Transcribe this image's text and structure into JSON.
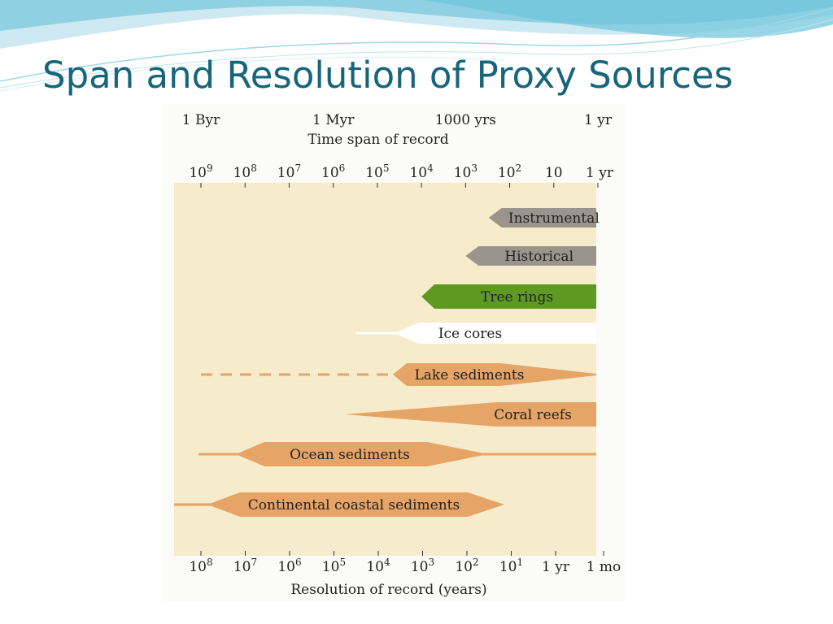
{
  "slide": {
    "title": "Span and Resolution of Proxy Sources"
  },
  "chart_data": {
    "type": "range-bar",
    "time_span_axis": {
      "title": "Time span of record",
      "named_labels": [
        {
          "label": "1 Byr",
          "value": 1000000000
        },
        {
          "label": "1 Myr",
          "value": 1000000
        },
        {
          "label": "1000 yrs",
          "value": 1000
        },
        {
          "label": "1 yr",
          "value": 1
        }
      ],
      "ticks": [
        {
          "base": "10",
          "exp": "9",
          "value": 1000000000
        },
        {
          "base": "10",
          "exp": "8",
          "value": 100000000
        },
        {
          "base": "10",
          "exp": "7",
          "value": 10000000
        },
        {
          "base": "10",
          "exp": "6",
          "value": 1000000
        },
        {
          "base": "10",
          "exp": "5",
          "value": 100000
        },
        {
          "base": "10",
          "exp": "4",
          "value": 10000
        },
        {
          "base": "10",
          "exp": "3",
          "value": 1000
        },
        {
          "base": "10",
          "exp": "2",
          "value": 100
        },
        {
          "base": "10",
          "exp": "",
          "value": 10
        },
        {
          "base": "1 yr",
          "exp": "",
          "value": 1
        }
      ]
    },
    "resolution_axis": {
      "title": "Resolution of record (years)",
      "ticks": [
        {
          "base": "10",
          "exp": "8",
          "value": 100000000
        },
        {
          "base": "10",
          "exp": "7",
          "value": 10000000
        },
        {
          "base": "10",
          "exp": "6",
          "value": 1000000
        },
        {
          "base": "10",
          "exp": "5",
          "value": 100000
        },
        {
          "base": "10",
          "exp": "4",
          "value": 10000
        },
        {
          "base": "10",
          "exp": "3",
          "value": 1000
        },
        {
          "base": "10",
          "exp": "2",
          "value": 100
        },
        {
          "base": "10",
          "exp": "1",
          "value": 10
        },
        {
          "base": "1 yr",
          "exp": "",
          "value": 1
        },
        {
          "base": "1 mo",
          "exp": "",
          "value": 0.0833
        }
      ]
    },
    "series": [
      {
        "name": "Instrumental",
        "color": "#9a948c",
        "span_max_years": 300
      },
      {
        "name": "Historical",
        "color": "#9a948c",
        "span_max_years": 1000
      },
      {
        "name": "Tree rings",
        "color": "#5e9a22",
        "span_max_years": 10000
      },
      {
        "name": "Ice cores",
        "color": "#ffffff",
        "span_max_years": 800000
      },
      {
        "name": "Lake sediments",
        "color": "#e6a466",
        "span_max_years": 1000000000,
        "dashed_beyond_years": 40000
      },
      {
        "name": "Coral reefs",
        "color": "#e6a466",
        "span_max_years": 500000
      },
      {
        "name": "Ocean sediments",
        "color": "#e6a466",
        "span_max_years": 1000000000
      },
      {
        "name": "Continental coastal sediments",
        "color": "#e6a466",
        "span_max_years": 3000000000
      }
    ]
  }
}
